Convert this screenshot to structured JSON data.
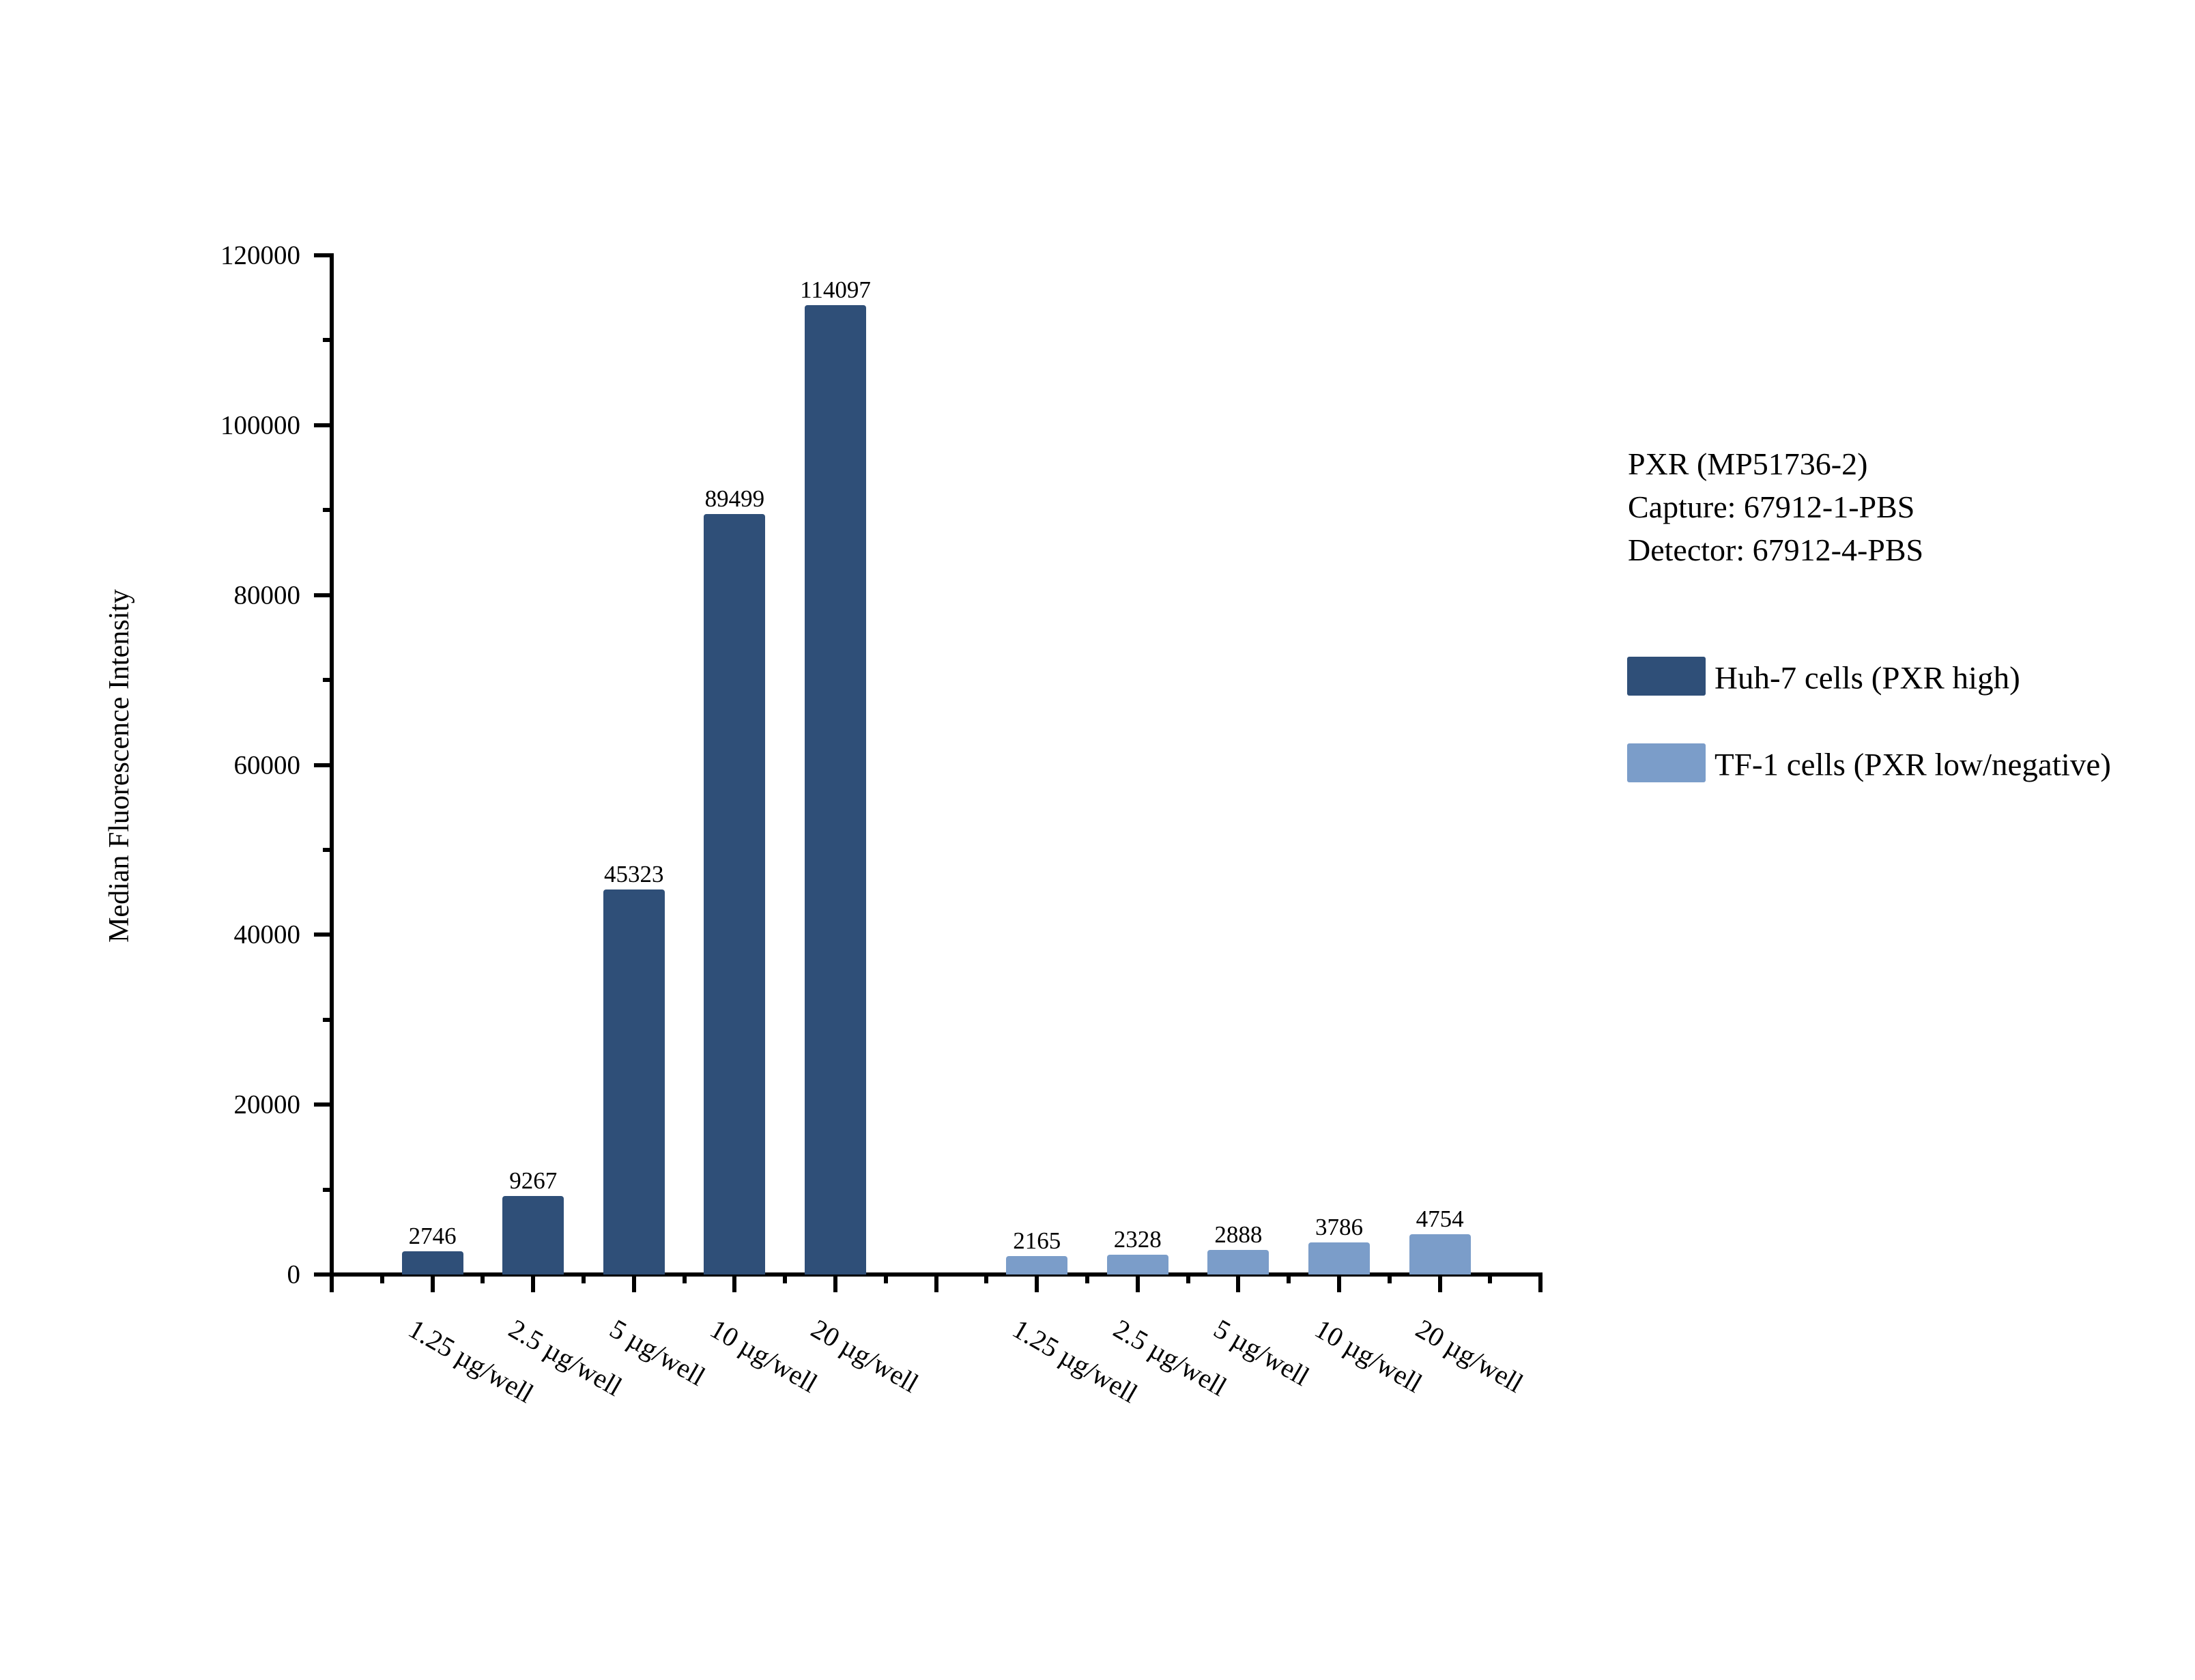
{
  "chart_data": {
    "type": "bar",
    "title": "",
    "ylabel": "Median Fluorescence Intensity",
    "xlabel": "",
    "ylim": [
      0,
      120000
    ],
    "yticks": [
      0,
      20000,
      40000,
      60000,
      80000,
      100000,
      120000
    ],
    "ytick_labels": [
      "0",
      "20000",
      "40000",
      "60000",
      "80000",
      "100000",
      "120000"
    ],
    "grid": false,
    "legend_position": "right",
    "annotation": [
      "PXR (MP51736-2)",
      "Capture: 67912-1-PBS",
      "Detector: 67912-4-PBS"
    ],
    "categories": [
      "1.25 µg/well",
      "2.5 µg/well",
      "5 µg/well",
      "10 µg/well",
      "20 µg/well"
    ],
    "series": [
      {
        "name": "Huh-7 cells (PXR high)",
        "color": "#2F4F78",
        "values": [
          2746,
          9267,
          45323,
          89499,
          114097
        ],
        "labels": [
          "2746",
          "9267",
          "45323",
          "89499",
          "114097"
        ]
      },
      {
        "name": "TF-1 cells (PXR low/negative)",
        "color": "#7B9DC9",
        "values": [
          2165,
          2328,
          2888,
          3786,
          4754
        ],
        "labels": [
          "2165",
          "2328",
          "2888",
          "3786",
          "4754"
        ]
      }
    ]
  },
  "legend": {
    "title_lines": [
      "PXR (MP51736-2)",
      "Capture: 67912-1-PBS",
      "Detector: 67912-4-PBS"
    ],
    "entries": [
      {
        "label": "Huh-7 cells (PXR high)",
        "color": "#2F4F78"
      },
      {
        "label": "TF-1 cells (PXR low/negative)",
        "color": "#7B9DC9"
      }
    ]
  }
}
